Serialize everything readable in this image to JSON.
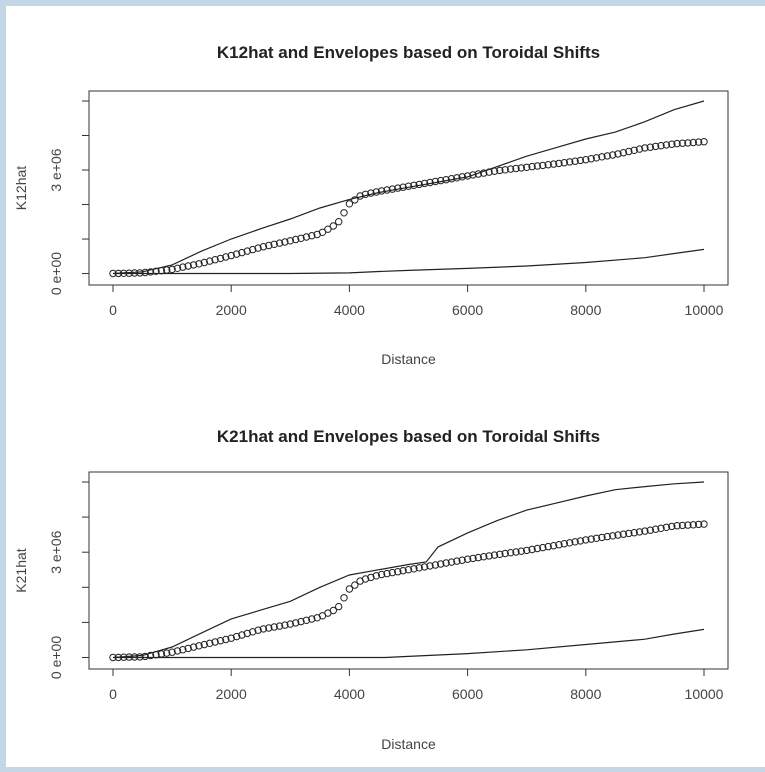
{
  "chart_data": [
    {
      "type": "line",
      "title": "K12hat and Envelopes based on Toroidal Shifts",
      "xlabel": "Distance",
      "ylabel": "K12hat",
      "xlim": [
        0,
        10000
      ],
      "ylim": [
        -100000,
        5000000
      ],
      "x_ticks": [
        0,
        2000,
        4000,
        6000,
        8000,
        10000
      ],
      "x_tick_labels": [
        "0",
        "2000",
        "4000",
        "6000",
        "8000",
        "10000"
      ],
      "y_ticks": [
        0,
        3000000
      ],
      "y_tick_labels": [
        "0  e+00",
        "3  e+06"
      ],
      "grid": false,
      "series": [
        {
          "style": "points",
          "x": [
            0,
            500,
            1000,
            1500,
            2000,
            2500,
            3000,
            3500,
            3800,
            4000,
            4200,
            4500,
            5000,
            5500,
            6000,
            6500,
            7000,
            7500,
            8000,
            8500,
            9000,
            9500,
            10000
          ],
          "y": [
            0,
            20000,
            120000,
            300000,
            520000,
            760000,
            950000,
            1150000,
            1450000,
            2020000,
            2270000,
            2380000,
            2530000,
            2680000,
            2830000,
            2980000,
            3080000,
            3180000,
            3300000,
            3450000,
            3640000,
            3760000,
            3820000
          ]
        },
        {
          "style": "line",
          "x": [
            0,
            500,
            1000,
            1500,
            2000,
            2500,
            3000,
            3500,
            4000,
            4500,
            5000,
            5500,
            6000,
            6500,
            7000,
            7500,
            8000,
            8500,
            9000,
            9500,
            10000
          ],
          "y": [
            0,
            50000,
            250000,
            650000,
            1000000,
            1300000,
            1580000,
            1900000,
            2150000,
            2350000,
            2500000,
            2650000,
            2800000,
            3100000,
            3400000,
            3650000,
            3900000,
            4100000,
            4400000,
            4750000,
            5000000
          ]
        },
        {
          "style": "line",
          "x": [
            0,
            1000,
            2000,
            3000,
            4000,
            4500,
            5000,
            6000,
            7000,
            8000,
            9000,
            9500,
            10000
          ],
          "y": [
            0,
            0,
            0,
            0,
            20000,
            60000,
            90000,
            150000,
            220000,
            320000,
            460000,
            580000,
            700000
          ]
        }
      ]
    },
    {
      "type": "line",
      "title": "K21hat and Envelopes based on Toroidal Shifts",
      "xlabel": "Distance",
      "ylabel": "K21hat",
      "xlim": [
        0,
        10000
      ],
      "ylim": [
        -100000,
        5000000
      ],
      "x_ticks": [
        0,
        2000,
        4000,
        6000,
        8000,
        10000
      ],
      "x_tick_labels": [
        "0",
        "2000",
        "4000",
        "6000",
        "8000",
        "10000"
      ],
      "y_ticks": [
        0,
        3000000
      ],
      "y_tick_labels": [
        "0  e+00",
        "3  e+06"
      ],
      "grid": false,
      "series": [
        {
          "style": "points",
          "x": [
            0,
            500,
            1000,
            1500,
            2000,
            2500,
            3000,
            3500,
            3800,
            4000,
            4200,
            4500,
            5000,
            5500,
            6000,
            6500,
            7000,
            7500,
            8000,
            8500,
            9000,
            9500,
            10000
          ],
          "y": [
            0,
            20000,
            150000,
            350000,
            550000,
            800000,
            950000,
            1150000,
            1400000,
            1950000,
            2200000,
            2350000,
            2500000,
            2650000,
            2800000,
            2930000,
            3050000,
            3200000,
            3350000,
            3480000,
            3600000,
            3750000,
            3800000
          ]
        },
        {
          "style": "line",
          "x": [
            0,
            500,
            1000,
            1500,
            2000,
            2500,
            3000,
            3500,
            4000,
            4500,
            5000,
            5300,
            5500,
            6000,
            6500,
            7000,
            7500,
            8000,
            8500,
            9000,
            9500,
            10000
          ],
          "y": [
            0,
            60000,
            300000,
            700000,
            1100000,
            1350000,
            1600000,
            2000000,
            2350000,
            2500000,
            2650000,
            2720000,
            3150000,
            3550000,
            3900000,
            4200000,
            4400000,
            4600000,
            4780000,
            4870000,
            4950000,
            5000000
          ]
        },
        {
          "style": "line",
          "x": [
            0,
            1000,
            2000,
            3000,
            4000,
            4600,
            5000,
            6000,
            7000,
            8000,
            9000,
            9500,
            10000
          ],
          "y": [
            0,
            0,
            0,
            0,
            0,
            0,
            30000,
            110000,
            220000,
            370000,
            520000,
            670000,
            800000
          ]
        }
      ]
    }
  ]
}
